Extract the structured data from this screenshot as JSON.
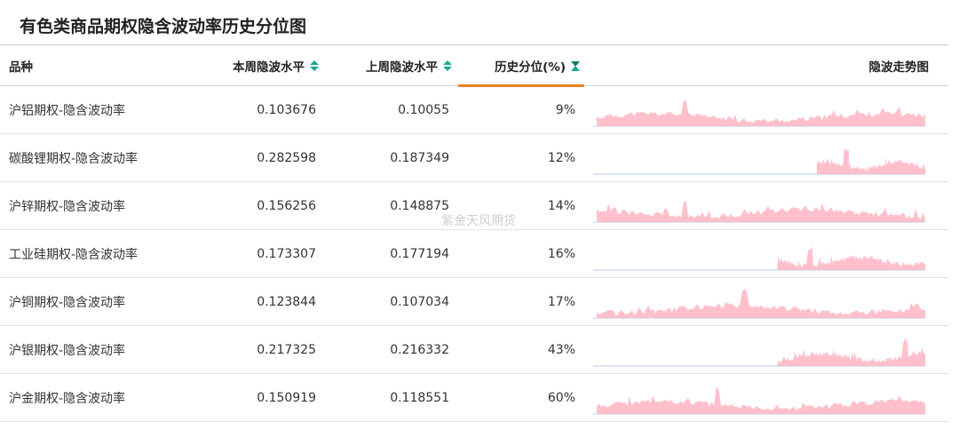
{
  "title": "有色类商品期权隐含波动率历史分位图",
  "watermark": "紫金天风期货",
  "colors": {
    "accent": "#e8821e",
    "sort_teal": "#1aa99a",
    "spark_fill": "#ffc0cb",
    "spark_base": "#b9c9e0"
  },
  "header": {
    "name": "品种",
    "current": "本周隐波水平",
    "previous": "上周隐波水平",
    "percentile": "历史分位(%)",
    "trend": "隐波走势图"
  },
  "rows": [
    {
      "name": "沪铝期权-隐含波动率",
      "current": "0.103676",
      "previous": "0.10055",
      "percentile": "9%"
    },
    {
      "name": "碳酸锂期权-隐含波动率",
      "current": "0.282598",
      "previous": "0.187349",
      "percentile": "12%"
    },
    {
      "name": "沪锌期权-隐含波动率",
      "current": "0.156256",
      "previous": "0.148875",
      "percentile": "14%"
    },
    {
      "name": "工业硅期权-隐含波动率",
      "current": "0.173307",
      "previous": "0.177194",
      "percentile": "16%"
    },
    {
      "name": "沪铜期权-隐含波动率",
      "current": "0.123844",
      "previous": "0.107034",
      "percentile": "17%"
    },
    {
      "name": "沪银期权-隐含波动率",
      "current": "0.217325",
      "previous": "0.216332",
      "percentile": "43%"
    },
    {
      "name": "沪金期权-隐含波动率",
      "current": "0.150919",
      "previous": "0.118551",
      "percentile": "60%"
    }
  ]
}
